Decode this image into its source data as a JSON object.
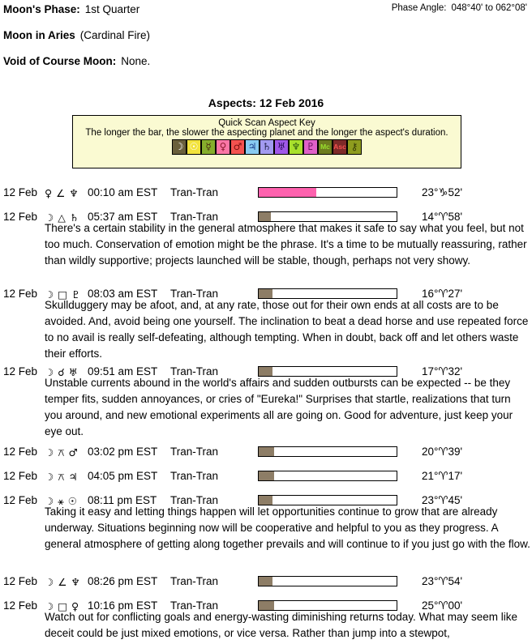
{
  "header": {
    "moons_phase_label": "Moon's Phase:",
    "moons_phase_value": "1st Quarter",
    "phase_angle_label": "Phase Angle:",
    "phase_angle_value": "048°40' to 062°08'",
    "moon_in_label": "Moon in Aries",
    "moon_in_value": "(Cardinal Fire)",
    "voc_label": "Void of Course Moon:",
    "voc_value": "None."
  },
  "aspects_title": "Aspects: 12 Feb 2016",
  "key": {
    "title": "Quick Scan Aspect Key",
    "subtitle": "The longer the bar, the slower the aspecting planet and the longer the aspect's duration.",
    "symbols": [
      {
        "name": "moon",
        "glyph": "☽",
        "bg": "#6a5f3c",
        "fg": "#ffffff"
      },
      {
        "name": "sun",
        "glyph": "☉",
        "bg": "#f2e23c",
        "fg": "#ffffff"
      },
      {
        "name": "mercury",
        "glyph": "☿",
        "bg": "#86ae2c",
        "fg": "#4a2a10"
      },
      {
        "name": "venus",
        "glyph": "♀",
        "bg": "#fb76a6",
        "fg": "#8b1a2e"
      },
      {
        "name": "mars",
        "glyph": "♂",
        "bg": "#f4524f",
        "fg": "#7a1010"
      },
      {
        "name": "jupiter",
        "glyph": "♃",
        "bg": "#88caf0",
        "fg": "#1a3a8a"
      },
      {
        "name": "saturn",
        "glyph": "♄",
        "bg": "#a29af0",
        "fg": "#26264e"
      },
      {
        "name": "uranus",
        "glyph": "♅",
        "bg": "#a058e8",
        "fg": "#2d0f5e"
      },
      {
        "name": "neptune",
        "glyph": "♆",
        "bg": "#a8e02c",
        "fg": "#2e5a10"
      },
      {
        "name": "pluto",
        "glyph": "♇",
        "bg": "#e060c8",
        "fg": "#5c0e54"
      },
      {
        "name": "mc",
        "glyph": "Mc",
        "bg": "#6d7c1f",
        "fg": "#9ae12e"
      },
      {
        "name": "asc",
        "glyph": "Asc",
        "bg": "#7e2a28",
        "fg": "#f4524f"
      },
      {
        "name": "chiron",
        "glyph": "⚷",
        "bg": "#8e9c1e",
        "fg": "#343a06"
      }
    ]
  },
  "aspects": [
    {
      "date": "12 Feb",
      "p1": "♀",
      "asp": "∠",
      "p2": "♆",
      "time": "00:10 am EST",
      "type": "Tran-Tran",
      "bar_pct": 42,
      "bar_color": "#fd62ae",
      "position": "23°♑52'",
      "desc": ""
    },
    {
      "date": "12 Feb",
      "p1": "☽",
      "asp": "△",
      "p2": "♄",
      "time": "05:37 am EST",
      "type": "Tran-Tran",
      "bar_pct": 9,
      "bar_color": "#8d7d66",
      "position": "14°♈58'",
      "desc": "There's a certain stability in the general atmosphere that makes it safe to say what you feel, but not too much. Conservation of emotion might be the phrase. It's a time to be mutually reassuring, rather than wildly supportive; projects launched will be stable, though, perhaps not very showy."
    },
    {
      "date": "12 Feb",
      "p1": "☽",
      "asp": "□",
      "p2": "♇",
      "time": "08:03 am EST",
      "type": "Tran-Tran",
      "bar_pct": 10,
      "bar_color": "#8d7d66",
      "position": "16°♈27'",
      "desc": "Skullduggery may be afoot, and, at any rate, those out for their own ends at all costs are to be avoided. And, avoid being one yourself. The inclination to beat a dead horse and use repeated force to no avail is really self-defeating, although tempting. When in doubt, back off and let others waste their efforts."
    },
    {
      "date": "12 Feb",
      "p1": "☽",
      "asp": "☌",
      "p2": "♅",
      "time": "09:51 am EST",
      "type": "Tran-Tran",
      "bar_pct": 10,
      "bar_color": "#8d7d66",
      "position": "17°♈32'",
      "desc": "Unstable currents abound in the world's affairs and sudden outbursts can be expected -- be they temper fits, sudden annoyances, or cries of \"Eureka!\" Surprises that startle, realizations that turn you around, and new emotional experiments all are going on. Good for adventure, just keep your eye out."
    },
    {
      "date": "12 Feb",
      "p1": "☽",
      "asp": "⚻",
      "p2": "♂",
      "time": "03:02 pm EST",
      "type": "Tran-Tran",
      "bar_pct": 11,
      "bar_color": "#8d7d66",
      "position": "20°♈39'",
      "desc": ""
    },
    {
      "date": "12 Feb",
      "p1": "☽",
      "asp": "⚻",
      "p2": "♃",
      "time": "04:05 pm EST",
      "type": "Tran-Tran",
      "bar_pct": 11,
      "bar_color": "#8d7d66",
      "position": "21°♈17'",
      "desc": ""
    },
    {
      "date": "12 Feb",
      "p1": "☽",
      "asp": "⚹",
      "p2": "☉",
      "time": "08:11 pm EST",
      "type": "Tran-Tran",
      "bar_pct": 10,
      "bar_color": "#8d7d66",
      "position": "23°♈45'",
      "desc": "Taking it easy and letting things happen will let opportunities continue to grow that are already underway. Situations beginning now will be cooperative and helpful to you as they progress. A general atmosphere of getting along together prevails and will continue to if you just go with the flow."
    },
    {
      "date": "12 Feb",
      "p1": "☽",
      "asp": "∠",
      "p2": "♆",
      "time": "08:26 pm EST",
      "type": "Tran-Tran",
      "bar_pct": 10,
      "bar_color": "#8d7d66",
      "position": "23°♈54'",
      "desc": ""
    },
    {
      "date": "12 Feb",
      "p1": "☽",
      "asp": "□",
      "p2": "♀",
      "time": "10:16 pm EST",
      "type": "Tran-Tran",
      "bar_pct": 11,
      "bar_color": "#8d7d66",
      "position": "25°♈00'",
      "desc": "Watch out for conflicting goals and energy-wasting diminishing returns today. What may seem like deceit could be just mixed emotions, or vice versa. Rather than jump into a stewpot,"
    }
  ]
}
